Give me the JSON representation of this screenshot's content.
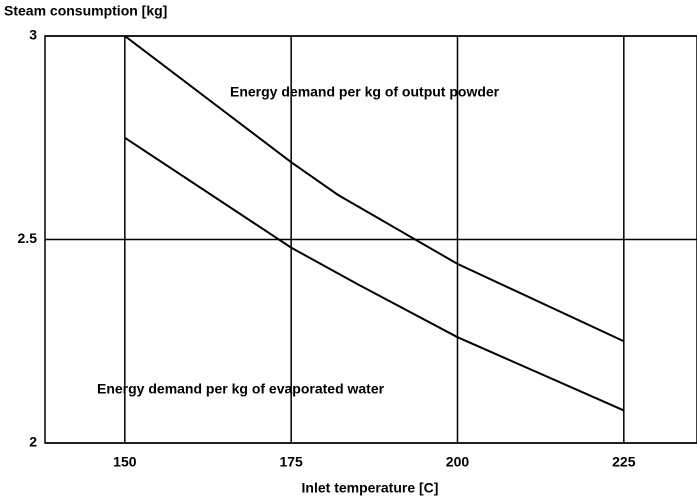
{
  "chart_data": {
    "type": "line",
    "title": "Steam consumption [kg]",
    "x_label": "Inlet temperature [C]",
    "annotations": [
      "Energy demand per kg of output powder",
      "Energy demand per kg of evaporated water"
    ],
    "series": [
      {
        "name": "Energy demand per kg of output powder",
        "color": "#000000",
        "x": [
          150,
          175,
          182,
          200,
          225
        ],
        "values": [
          3.0,
          2.69,
          2.61,
          2.44,
          2.25
        ]
      },
      {
        "name": "Energy demand per kg of evaporated water",
        "color": "#000000",
        "x": [
          150,
          175,
          185,
          200,
          225
        ],
        "values": [
          2.75,
          2.48,
          2.39,
          2.26,
          2.08
        ]
      }
    ],
    "xlim": [
      138,
      236
    ],
    "xticks": [
      150,
      175,
      200,
      225
    ],
    "ylim": [
      2,
      3
    ],
    "yticks": [
      2,
      2.5,
      3
    ],
    "grid": true
  }
}
